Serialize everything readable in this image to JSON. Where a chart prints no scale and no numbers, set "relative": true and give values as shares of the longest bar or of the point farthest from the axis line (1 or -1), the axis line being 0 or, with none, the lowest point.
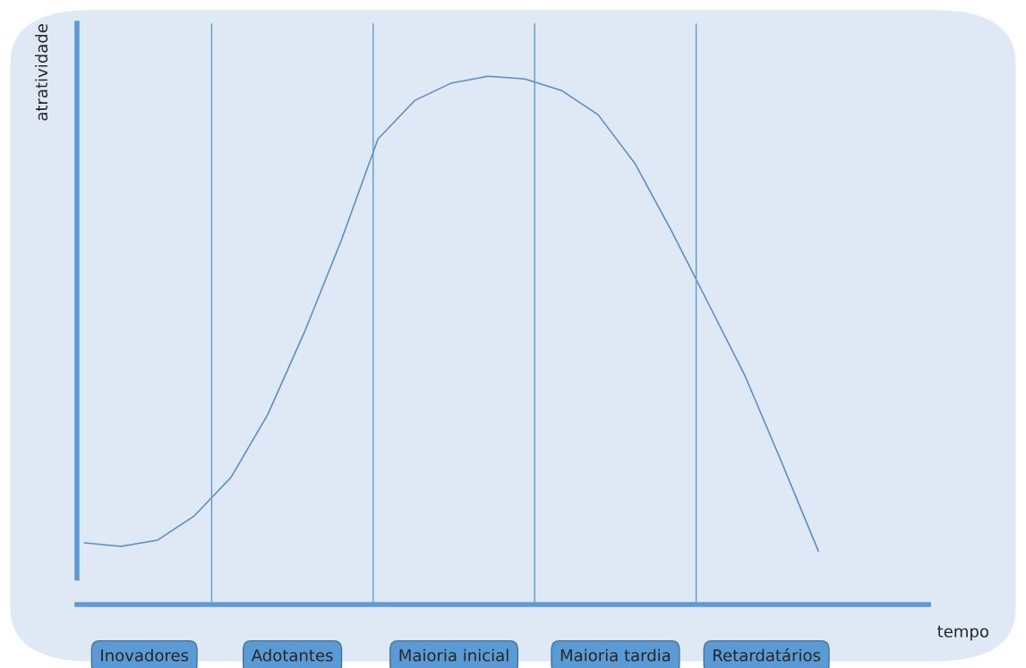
{
  "chart_data": {
    "type": "line",
    "relative": true,
    "ylabel": "atratividade",
    "categories": [
      null,
      null,
      null,
      null,
      null,
      null,
      null,
      null,
      null,
      null,
      null,
      null,
      null,
      null,
      null,
      null,
      null,
      null,
      null,
      null,
      null
    ],
    "series": [
      {
        "color": "#5a8ac6",
        "values": [
          0.117,
          0.11,
          0.122,
          0.168,
          0.241,
          0.36,
          0.516,
          0.689,
          0.881,
          0.954,
          0.987,
          1.0,
          0.995,
          0.973,
          0.927,
          0.835,
          0.707,
          0.57,
          0.433,
          0.269,
          0.101
        ]
      }
    ],
    "annotations": [
      "Inovadores",
      "Adotantes",
      "Maioria inicial",
      "Maioria tardia",
      "Retardatários",
      "tempo"
    ],
    "legend": false
  }
}
